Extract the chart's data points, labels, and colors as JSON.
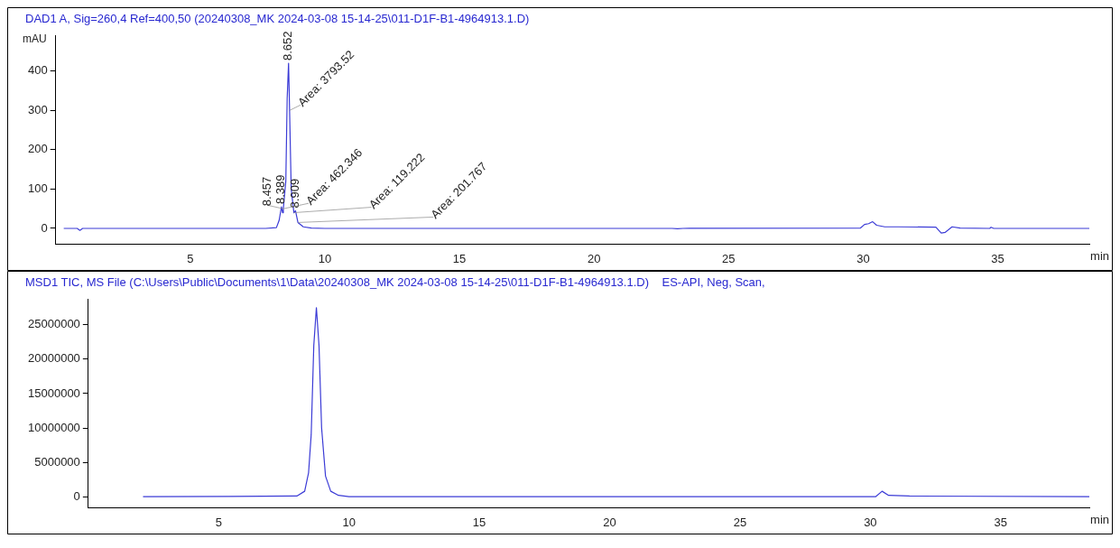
{
  "chart_data": [
    {
      "type": "line",
      "title": "DAD1 A, Sig=260,4 Ref=400,50 (20240308_MK 2024-03-08 15-14-25\\011-D1F-B1-4964913.1.D)",
      "ylabel": "mAU",
      "xlabel": "min",
      "xlim": [
        0,
        38.4
      ],
      "xticks": [
        5,
        10,
        15,
        20,
        25,
        30,
        35
      ],
      "ylim": [
        -40,
        490
      ],
      "yticks": [
        0,
        100,
        200,
        300,
        400
      ],
      "grid": false,
      "legend": false,
      "marker": "none",
      "series": [
        {
          "color": "#3b3bd6",
          "x": [
            0.3,
            0.8,
            0.9,
            1.0,
            7.8,
            8.2,
            8.3,
            8.389,
            8.43,
            8.457,
            8.55,
            8.6,
            8.652,
            8.69,
            8.75,
            8.85,
            8.909,
            9.0,
            9.2,
            9.5,
            10,
            22.9,
            23.1,
            23.3,
            29.9,
            30.05,
            30.2,
            30.35,
            30.5,
            30.8,
            31.3,
            32.7,
            32.9,
            33.05,
            33.3,
            33.6,
            34.7,
            34.75,
            34.85,
            38.4
          ],
          "values": [
            0,
            0,
            -5,
            0,
            0,
            2,
            20,
            55,
            40,
            50,
            120,
            330,
            420,
            300,
            100,
            40,
            45,
            15,
            4,
            1,
            0,
            0,
            -1,
            0,
            1,
            10,
            12,
            17,
            8,
            4,
            4,
            3,
            -12,
            -10,
            4,
            1,
            0,
            3,
            0,
            0
          ]
        }
      ],
      "annotations": [
        {
          "text": "8.652",
          "x": 8.652,
          "y": 420
        },
        {
          "text": "Area: 3793.52",
          "x": 8.69,
          "y": 300
        },
        {
          "text": "8.389",
          "x": 8.389,
          "y": 55
        },
        {
          "text": "8.457",
          "x": 8.457,
          "y": 50
        },
        {
          "text": "8.909",
          "x": 8.909,
          "y": 45
        },
        {
          "text": "Area: 462.346",
          "x": 8.457,
          "y": 50
        },
        {
          "text": "Area: 119.222",
          "x": 8.85,
          "y": 40
        },
        {
          "text": "Area: 201.767",
          "x": 9.0,
          "y": 15
        }
      ]
    },
    {
      "type": "line",
      "title": "MSD1 TIC, MS File (C:\\Users\\Public\\Documents\\1\\Data\\20240308_MK 2024-03-08 15-14-25\\011-D1F-B1-4964913.1.D)    ES-API, Neg, Scan,",
      "xlabel": "min",
      "xlim": [
        0,
        38.4
      ],
      "xticks": [
        5,
        10,
        15,
        20,
        25,
        30,
        35
      ],
      "ylim": [
        -1600000,
        28700000
      ],
      "yticks": [
        0,
        5000000,
        10000000,
        15000000,
        20000000,
        25000000
      ],
      "grid": false,
      "legend": false,
      "marker": "none",
      "series": [
        {
          "color": "#3b3bd6",
          "x": [
            2.1,
            8.0,
            8.3,
            8.45,
            8.55,
            8.65,
            8.75,
            8.85,
            8.95,
            9.1,
            9.3,
            9.6,
            10,
            30.2,
            30.45,
            30.7,
            31.5,
            38.4
          ],
          "values": [
            0,
            100000,
            800000,
            3500000,
            9000000,
            22000000,
            27500000,
            22000000,
            10000000,
            3000000,
            800000,
            200000,
            0,
            0,
            800000,
            200000,
            100000,
            0
          ]
        }
      ]
    }
  ]
}
